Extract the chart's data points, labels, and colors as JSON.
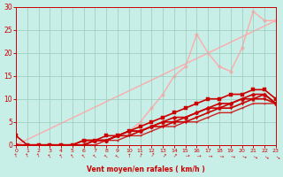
{
  "xlabel": "Vent moyen/en rafales ( km/h )",
  "xlim": [
    0,
    23
  ],
  "ylim": [
    0,
    30
  ],
  "xticks": [
    0,
    1,
    2,
    3,
    4,
    5,
    6,
    7,
    8,
    9,
    10,
    11,
    12,
    13,
    14,
    15,
    16,
    17,
    18,
    19,
    20,
    21,
    22,
    23
  ],
  "yticks": [
    0,
    5,
    10,
    15,
    20,
    25,
    30
  ],
  "bg_color": "#c8eee8",
  "grid_color": "#99ccbb",
  "series": [
    {
      "x": [
        0,
        23
      ],
      "y": [
        0,
        27
      ],
      "color": "#ffaaaa",
      "lw": 1.0,
      "marker": "o",
      "ms": 2.5,
      "zorder": 1
    },
    {
      "x": [
        0,
        5,
        6,
        7,
        8,
        9,
        10,
        11,
        12,
        13,
        14,
        15,
        16,
        17,
        18,
        19,
        20,
        21,
        22,
        23
      ],
      "y": [
        0,
        0,
        0,
        0,
        1,
        2,
        3,
        5,
        8,
        11,
        15,
        17,
        24,
        20,
        17,
        16,
        21,
        29,
        27,
        27
      ],
      "color": "#ffaaaa",
      "lw": 1.0,
      "marker": "o",
      "ms": 2.5,
      "zorder": 1
    },
    {
      "x": [
        0,
        1,
        2,
        3,
        4,
        5,
        6,
        7,
        8,
        9,
        10,
        11,
        12,
        13,
        14,
        15,
        16,
        17,
        18,
        19,
        20,
        21,
        22,
        23
      ],
      "y": [
        2,
        0,
        0,
        0,
        0,
        0,
        1,
        1,
        2,
        2,
        3,
        4,
        5,
        6,
        7,
        8,
        9,
        10,
        10,
        11,
        11,
        12,
        12,
        10
      ],
      "color": "#cc0000",
      "lw": 1.2,
      "marker": "s",
      "ms": 2.5,
      "zorder": 3
    },
    {
      "x": [
        0,
        1,
        2,
        3,
        4,
        5,
        6,
        7,
        8,
        9,
        10,
        11,
        12,
        13,
        14,
        15,
        16,
        17,
        18,
        19,
        20,
        21,
        22,
        23
      ],
      "y": [
        0,
        0,
        0,
        0,
        0,
        0,
        1,
        1,
        1,
        2,
        3,
        3,
        4,
        5,
        6,
        6,
        7,
        8,
        9,
        9,
        10,
        11,
        11,
        9
      ],
      "color": "#cc0000",
      "lw": 1.2,
      "marker": "D",
      "ms": 2.5,
      "zorder": 3
    },
    {
      "x": [
        0,
        1,
        2,
        3,
        4,
        5,
        6,
        7,
        8,
        9,
        10,
        11,
        12,
        13,
        14,
        15,
        16,
        17,
        18,
        19,
        20,
        21,
        22,
        23
      ],
      "y": [
        0,
        0,
        0,
        0,
        0,
        0,
        0,
        1,
        1,
        2,
        3,
        3,
        4,
        5,
        5,
        6,
        7,
        8,
        8,
        9,
        10,
        10,
        11,
        9
      ],
      "color": "#cc0000",
      "lw": 1.2,
      "marker": "^",
      "ms": 2.5,
      "zorder": 3
    },
    {
      "x": [
        0,
        1,
        2,
        3,
        4,
        5,
        6,
        7,
        8,
        9,
        10,
        11,
        12,
        13,
        14,
        15,
        16,
        17,
        18,
        19,
        20,
        21,
        22,
        23
      ],
      "y": [
        0,
        0,
        0,
        0,
        0,
        0,
        0,
        1,
        1,
        2,
        2,
        3,
        4,
        4,
        5,
        5,
        6,
        7,
        8,
        8,
        9,
        10,
        10,
        9
      ],
      "color": "#cc0000",
      "lw": 1.2,
      "marker": "v",
      "ms": 2.5,
      "zorder": 3
    },
    {
      "x": [
        0,
        1,
        2,
        3,
        4,
        5,
        6,
        7,
        8,
        9,
        10,
        11,
        12,
        13,
        14,
        15,
        16,
        17,
        18,
        19,
        20,
        21,
        22,
        23
      ],
      "y": [
        0,
        0,
        0,
        0,
        0,
        0,
        0,
        0,
        1,
        1,
        2,
        2,
        3,
        4,
        4,
        5,
        5,
        6,
        7,
        7,
        8,
        9,
        9,
        9
      ],
      "color": "#cc2222",
      "lw": 1.0,
      "marker": ".",
      "ms": 2.0,
      "zorder": 2
    }
  ],
  "wind_arrow_angles": [
    80,
    75,
    70,
    65,
    65,
    60,
    55,
    50,
    45,
    40,
    90,
    110,
    120,
    135,
    135,
    175,
    180,
    185,
    190,
    195,
    200,
    210,
    215,
    220
  ],
  "figsize": [
    3.2,
    2.0
  ],
  "dpi": 100
}
